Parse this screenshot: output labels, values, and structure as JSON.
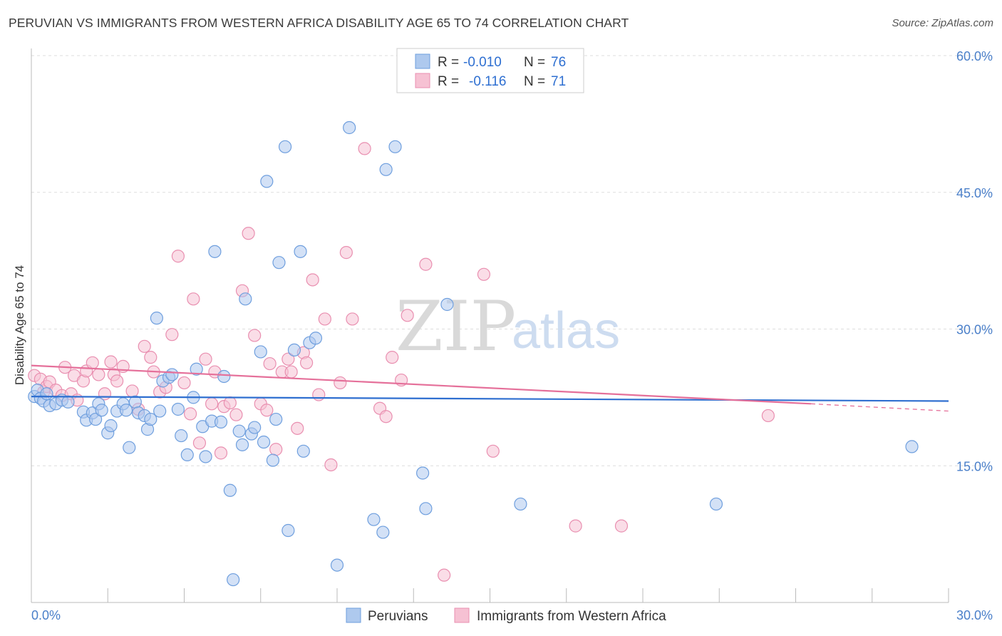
{
  "header": {
    "title": "PERUVIAN VS IMMIGRANTS FROM WESTERN AFRICA DISABILITY AGE 65 TO 74 CORRELATION CHART",
    "source": "Source: ZipAtlas.com"
  },
  "watermark": {
    "part1": "ZIP",
    "part2": "atlas"
  },
  "legend": {
    "rows": [
      {
        "r_label": "R =",
        "r_value": "-0.010",
        "n_label": "N =",
        "n_value": "76"
      },
      {
        "r_label": "R =",
        "r_value": "-0.116",
        "n_label": "N =",
        "n_value": "71"
      }
    ]
  },
  "bottom_legend": {
    "series1": "Peruvians",
    "series2": "Immigrants from Western Africa"
  },
  "colors": {
    "blue_fill": "#aec9ee",
    "blue_stroke": "#6f9fde",
    "blue_line": "#2f6fd0",
    "pink_fill": "#f6c1d3",
    "pink_stroke": "#e98fb0",
    "pink_line": "#e5709a",
    "grid": "#dddddd",
    "tick_text": "#4a7fc9"
  },
  "chart_data": {
    "type": "scatter",
    "title": "PERUVIAN VS IMMIGRANTS FROM WESTERN AFRICA DISABILITY AGE 65 TO 74 CORRELATION CHART",
    "xlabel": "",
    "ylabel": "Disability Age 65 to 74",
    "xlim": [
      0,
      30
    ],
    "ylim": [
      0,
      60
    ],
    "x_tick_labels": [
      "0.0%",
      "30.0%"
    ],
    "y_tick_labels": [
      "15.0%",
      "30.0%",
      "45.0%",
      "60.0%"
    ],
    "y_ticks": [
      15,
      30,
      45,
      60
    ],
    "grid": true,
    "legend_position": "top-center",
    "series": [
      {
        "name": "Peruvians",
        "r": -0.01,
        "n": 76,
        "trend": {
          "x": [
            0,
            30
          ],
          "y": [
            22.6,
            22.1
          ]
        },
        "points": [
          [
            0.1,
            22.6
          ],
          [
            0.2,
            23.3
          ],
          [
            0.3,
            22.4
          ],
          [
            0.4,
            22.1
          ],
          [
            0.5,
            22.9
          ],
          [
            0.6,
            21.6
          ],
          [
            0.8,
            21.8
          ],
          [
            1.0,
            22.2
          ],
          [
            1.2,
            22.0
          ],
          [
            1.7,
            20.9
          ],
          [
            1.8,
            20.0
          ],
          [
            2.0,
            20.8
          ],
          [
            2.1,
            20.1
          ],
          [
            2.2,
            21.8
          ],
          [
            2.3,
            21.1
          ],
          [
            2.5,
            18.6
          ],
          [
            2.6,
            19.4
          ],
          [
            2.8,
            21.0
          ],
          [
            3.0,
            21.8
          ],
          [
            3.1,
            21.1
          ],
          [
            3.2,
            17.0
          ],
          [
            3.4,
            22.0
          ],
          [
            3.5,
            20.8
          ],
          [
            3.7,
            20.5
          ],
          [
            3.8,
            19.0
          ],
          [
            3.9,
            20.1
          ],
          [
            4.1,
            31.2
          ],
          [
            4.2,
            21.0
          ],
          [
            4.3,
            24.3
          ],
          [
            4.5,
            24.7
          ],
          [
            4.6,
            25.0
          ],
          [
            4.8,
            21.2
          ],
          [
            4.9,
            18.3
          ],
          [
            5.1,
            16.2
          ],
          [
            5.3,
            22.5
          ],
          [
            5.4,
            25.6
          ],
          [
            5.6,
            19.3
          ],
          [
            5.7,
            16.0
          ],
          [
            5.9,
            19.9
          ],
          [
            6.0,
            38.5
          ],
          [
            6.2,
            19.8
          ],
          [
            6.3,
            24.8
          ],
          [
            6.5,
            12.3
          ],
          [
            6.6,
            2.5
          ],
          [
            6.8,
            18.8
          ],
          [
            6.9,
            17.3
          ],
          [
            7.0,
            33.3
          ],
          [
            7.2,
            18.5
          ],
          [
            7.3,
            19.2
          ],
          [
            7.5,
            27.5
          ],
          [
            7.6,
            17.6
          ],
          [
            7.7,
            46.2
          ],
          [
            7.9,
            15.6
          ],
          [
            8.0,
            20.1
          ],
          [
            8.1,
            37.3
          ],
          [
            8.3,
            50.0
          ],
          [
            8.4,
            7.9
          ],
          [
            8.6,
            27.7
          ],
          [
            8.8,
            38.5
          ],
          [
            8.9,
            16.6
          ],
          [
            9.1,
            28.5
          ],
          [
            9.3,
            29.0
          ],
          [
            10.0,
            4.1
          ],
          [
            10.4,
            52.1
          ],
          [
            11.2,
            9.1
          ],
          [
            11.5,
            7.7
          ],
          [
            11.6,
            47.5
          ],
          [
            11.9,
            50.0
          ],
          [
            12.8,
            14.2
          ],
          [
            12.9,
            10.3
          ],
          [
            13.6,
            32.7
          ],
          [
            16.0,
            10.8
          ],
          [
            22.4,
            10.8
          ],
          [
            28.8,
            17.1
          ]
        ]
      },
      {
        "name": "Immigrants from Western Africa",
        "r": -0.116,
        "n": 71,
        "trend": {
          "x": [
            0,
            25.5
          ],
          "y": [
            26.0,
            21.8
          ]
        },
        "trend_extension": {
          "x": [
            25.5,
            30
          ],
          "y": [
            21.8,
            21.0
          ]
        },
        "points": [
          [
            0.1,
            24.9
          ],
          [
            0.3,
            24.5
          ],
          [
            0.4,
            23.1
          ],
          [
            0.5,
            23.7
          ],
          [
            0.6,
            24.2
          ],
          [
            0.8,
            23.3
          ],
          [
            1.0,
            22.7
          ],
          [
            1.1,
            25.8
          ],
          [
            1.3,
            22.9
          ],
          [
            1.4,
            24.9
          ],
          [
            1.5,
            22.2
          ],
          [
            1.7,
            24.3
          ],
          [
            1.8,
            25.4
          ],
          [
            2.0,
            26.3
          ],
          [
            2.2,
            25.0
          ],
          [
            2.4,
            22.9
          ],
          [
            2.6,
            26.4
          ],
          [
            2.7,
            25.0
          ],
          [
            2.8,
            24.3
          ],
          [
            3.0,
            25.9
          ],
          [
            3.3,
            23.2
          ],
          [
            3.5,
            21.2
          ],
          [
            3.7,
            28.1
          ],
          [
            3.9,
            26.9
          ],
          [
            4.0,
            25.3
          ],
          [
            4.2,
            23.1
          ],
          [
            4.4,
            23.6
          ],
          [
            4.6,
            29.4
          ],
          [
            4.8,
            38.0
          ],
          [
            5.0,
            24.1
          ],
          [
            5.2,
            20.7
          ],
          [
            5.3,
            33.3
          ],
          [
            5.5,
            17.5
          ],
          [
            5.7,
            26.7
          ],
          [
            5.9,
            21.8
          ],
          [
            6.0,
            25.3
          ],
          [
            6.2,
            16.4
          ],
          [
            6.3,
            21.5
          ],
          [
            6.5,
            21.9
          ],
          [
            6.7,
            20.6
          ],
          [
            6.9,
            34.2
          ],
          [
            7.1,
            40.5
          ],
          [
            7.3,
            29.3
          ],
          [
            7.5,
            21.8
          ],
          [
            7.7,
            21.1
          ],
          [
            7.8,
            26.2
          ],
          [
            8.0,
            16.8
          ],
          [
            8.2,
            25.3
          ],
          [
            8.4,
            26.7
          ],
          [
            8.5,
            25.3
          ],
          [
            8.7,
            19.1
          ],
          [
            8.9,
            27.4
          ],
          [
            9.0,
            26.3
          ],
          [
            9.2,
            35.4
          ],
          [
            9.4,
            22.8
          ],
          [
            9.6,
            31.1
          ],
          [
            9.8,
            15.1
          ],
          [
            10.1,
            24.1
          ],
          [
            10.3,
            38.4
          ],
          [
            10.5,
            31.1
          ],
          [
            10.9,
            49.8
          ],
          [
            11.4,
            21.3
          ],
          [
            11.6,
            20.4
          ],
          [
            11.8,
            26.9
          ],
          [
            12.1,
            24.4
          ],
          [
            12.3,
            31.5
          ],
          [
            12.9,
            37.1
          ],
          [
            13.5,
            3.0
          ],
          [
            14.8,
            36.0
          ],
          [
            15.1,
            16.6
          ],
          [
            17.8,
            8.4
          ],
          [
            19.3,
            8.4
          ],
          [
            24.1,
            20.5
          ]
        ]
      }
    ]
  }
}
